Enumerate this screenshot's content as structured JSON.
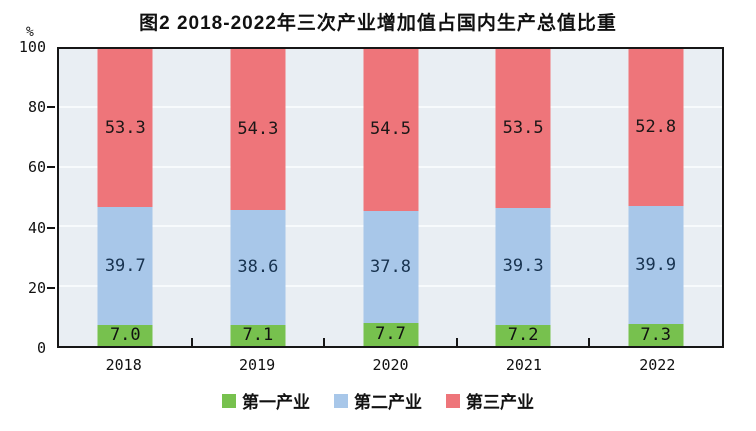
{
  "title": "图2 2018-2022年三次产业增加值占国内生产总值比重",
  "y_axis": {
    "unit": "%",
    "ticks": [
      0,
      20,
      40,
      60,
      80,
      100
    ]
  },
  "chart_data": {
    "type": "bar",
    "stacked": true,
    "title": "图2 2018-2022年三次产业增加值占国内生产总值比重",
    "categories": [
      "2018",
      "2019",
      "2020",
      "2021",
      "2022"
    ],
    "series": [
      {
        "name": "第一产业",
        "color": "#77c14e",
        "label_color": "#111111",
        "values": [
          7.0,
          7.1,
          7.7,
          7.2,
          7.3
        ]
      },
      {
        "name": "第二产业",
        "color": "#a8c7e9",
        "label_color": "#17324f",
        "values": [
          39.7,
          38.6,
          37.8,
          39.3,
          39.9
        ]
      },
      {
        "name": "第三产业",
        "color": "#ee757a",
        "label_color": "#1c1717",
        "values": [
          53.3,
          54.3,
          54.5,
          53.5,
          52.8
        ]
      }
    ],
    "xlabel": "",
    "ylabel": "%",
    "ylim": [
      0,
      100
    ],
    "grid": true,
    "gridline_color": "#f7fafc",
    "plot_background": "#e9eef3",
    "frame_color": "#161616",
    "legend_position": "bottom"
  }
}
